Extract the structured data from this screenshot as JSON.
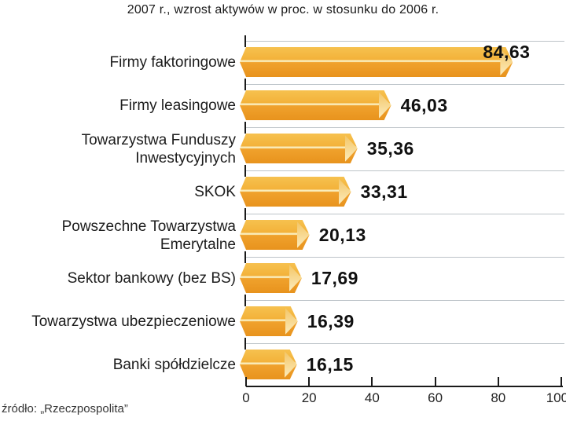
{
  "chart_data": {
    "type": "bar",
    "orientation": "horizontal",
    "title": "2007 r., wzrost aktywów w proc. w stosunku do 2006 r.",
    "xlabel": "",
    "ylabel": "",
    "xlim": [
      0,
      100
    ],
    "x_ticks": [
      0,
      20,
      40,
      60,
      80,
      100
    ],
    "grid": "horizontal-row-separators",
    "legend": false,
    "source": "źródło: „Rzeczpospolita”",
    "categories": [
      "Firmy faktoringowe",
      "Firmy leasingowe",
      "Towarzystwa Funduszy Inwestycyjnych",
      "SKOK",
      "Powszechne Towarzystwa Emerytalne",
      "Sektor bankowy (bez BS)",
      "Towarzystwa ubezpieczeniowe",
      "Banki spółdzielcze"
    ],
    "category_lines": [
      [
        "Firmy faktoringowe"
      ],
      [
        "Firmy leasingowe"
      ],
      [
        "Towarzystwa Funduszy",
        "Inwestycyjnych"
      ],
      [
        "SKOK"
      ],
      [
        "Powszechne Towarzystwa",
        "Emerytalne"
      ],
      [
        "Sektor bankowy (bez BS)"
      ],
      [
        "Towarzystwa ubezpieczeniowe"
      ],
      [
        "Banki spółdzielcze"
      ]
    ],
    "values": [
      84.63,
      46.03,
      35.36,
      33.31,
      20.13,
      17.69,
      16.39,
      16.15
    ],
    "value_labels": [
      "84,63",
      "46,03",
      "35,36",
      "33,31",
      "20,13",
      "17,69",
      "16,39",
      "16,15"
    ],
    "colors": {
      "bar_top_face": "#f4b843",
      "bar_bottom_face": "#e9951f",
      "bar_divider": "#fbefc3",
      "bar_tip_facet": "#fcecbd",
      "gridline": "#bcc3c8",
      "axis": "#1a1a1a",
      "text": "#1c1c1c"
    }
  }
}
